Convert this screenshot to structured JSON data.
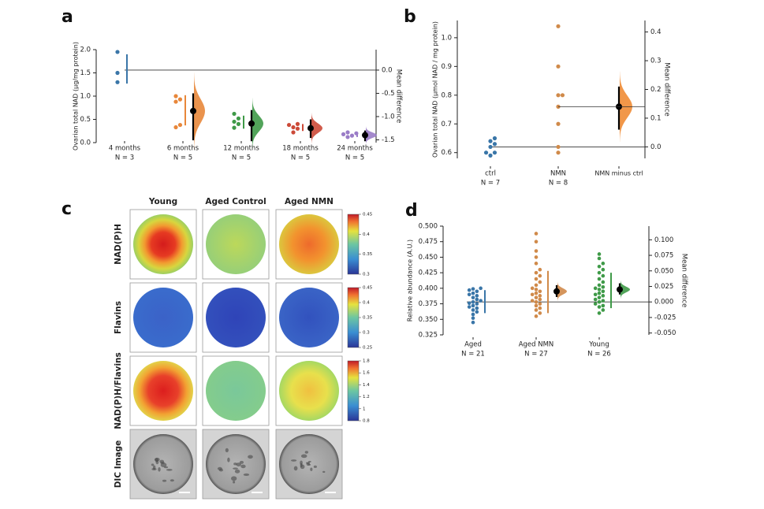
{
  "panel_labels": [
    "a",
    "b",
    "c",
    "d"
  ],
  "chart_data": [
    {
      "type": "estimation",
      "ylabel": "Ovarian total NAD (μg/mg protein)",
      "y2label": "Mean difference",
      "ylim": [
        0,
        2.0
      ],
      "yticks": [
        {
          "value": 0,
          "label": "0.0"
        },
        {
          "value": 0.5,
          "label": "0.5"
        },
        {
          "value": 1,
          "label": "1.0"
        },
        {
          "value": 1.5,
          "label": "1.5"
        },
        {
          "value": 2,
          "label": "2.0"
        }
      ],
      "y2lim": [
        -1.56,
        0.44
      ],
      "y2ticks": [
        {
          "value": 0,
          "label": "0.0"
        },
        {
          "value": -0.5,
          "label": "-0.5"
        },
        {
          "value": -1,
          "label": "-1.0"
        },
        {
          "value": -1.5,
          "label": "-1.5"
        }
      ],
      "categories": [
        "4 months",
        "6 months",
        "12 months",
        "18 months",
        "24 months"
      ],
      "n_labels": [
        "N = 3",
        "N = 5",
        "N = 5",
        "N = 5",
        "N = 5"
      ],
      "colors": [
        "#3a76a8",
        "#e8873a",
        "#3f9a48",
        "#cc4a38",
        "#9a7cc7"
      ],
      "points": [
        [
          1.95,
          1.5,
          1.3
        ],
        [
          1.0,
          0.93,
          0.88,
          0.38,
          0.33
        ],
        [
          0.62,
          0.52,
          0.45,
          0.4,
          0.32
        ],
        [
          0.4,
          0.38,
          0.33,
          0.3,
          0.22
        ],
        [
          0.22,
          0.2,
          0.18,
          0.15,
          0.12
        ]
      ],
      "summary_bars": [
        [
          1.27,
          1.9
        ],
        [
          0.37,
          1.02
        ],
        [
          0.3,
          0.58
        ],
        [
          0.25,
          0.4
        ],
        [
          0.12,
          0.22
        ]
      ],
      "mean_diff": [
        null,
        -0.88,
        -1.15,
        -1.25,
        -1.4
      ],
      "ci": [
        null,
        [
          -1.51,
          -0.5
        ],
        [
          -1.53,
          -0.86
        ],
        [
          -1.46,
          -1.06
        ],
        [
          -1.53,
          -1.3
        ]
      ]
    },
    {
      "type": "estimation",
      "ylabel": "Ovarian total NAD (μmol NAD / mg protein)",
      "y2label": "Mean difference",
      "ylim": [
        0.58,
        1.06
      ],
      "yticks": [
        0.6,
        0.7,
        0.8,
        0.9,
        {
          "value": 1,
          "label": "1.0"
        }
      ],
      "y2lim": [
        -0.04,
        0.44
      ],
      "y2ticks": [
        {
          "value": 0,
          "label": "0.0"
        },
        0.1,
        0.2,
        0.3,
        0.4
      ],
      "categories": [
        "ctrl",
        "NMN"
      ],
      "n_labels": [
        "N = 7",
        "N = 8"
      ],
      "colors": [
        "#3a76a8",
        "#d08a4a"
      ],
      "points": [
        [
          0.65,
          0.64,
          0.63,
          0.62,
          0.6,
          0.6,
          0.59
        ],
        [
          1.04,
          0.9,
          0.8,
          0.8,
          0.76,
          0.7,
          0.62,
          0.6
        ]
      ],
      "diff_label": "NMN minus ctrl",
      "diff_color": "#f08c35",
      "mean_diff": [
        null,
        0.14
      ],
      "ci": [
        null,
        [
          0.06,
          0.21
        ]
      ]
    },
    {
      "type": "estimation",
      "ylabel": "Relative abundance (A.U.)",
      "y2label": "Mean difference",
      "ylim": [
        0.325,
        0.5
      ],
      "yticks": [
        0.325,
        {
          "value": 0.35,
          "label": "0.350"
        },
        0.375,
        {
          "value": 0.4,
          "label": "0.400"
        },
        0.425,
        {
          "value": 0.45,
          "label": "0.450"
        },
        0.475,
        {
          "value": 0.5,
          "label": "0.500"
        }
      ],
      "y2lim": [
        -0.053,
        0.122
      ],
      "y2ticks": [
        {
          "value": -0.05,
          "label": "-0.050"
        },
        -0.025,
        {
          "value": 0,
          "label": "0.000"
        },
        0.025,
        {
          "value": 0.05,
          "label": "0.050"
        },
        0.075,
        {
          "value": 0.1,
          "label": "0.100"
        }
      ],
      "categories": [
        "Aged",
        "Aged NMN",
        "Young"
      ],
      "n_labels": [
        "N = 21",
        "N = 27",
        "N = 26"
      ],
      "colors": [
        "#3a76a8",
        "#d08a4a",
        "#3f9a48"
      ],
      "points": [
        [
          0.345,
          0.352,
          0.358,
          0.362,
          0.365,
          0.368,
          0.37,
          0.372,
          0.375,
          0.376,
          0.378,
          0.38,
          0.382,
          0.385,
          0.388,
          0.39,
          0.392,
          0.395,
          0.397,
          0.399,
          0.4
        ],
        [
          0.355,
          0.36,
          0.365,
          0.368,
          0.372,
          0.375,
          0.378,
          0.38,
          0.382,
          0.385,
          0.388,
          0.39,
          0.392,
          0.395,
          0.398,
          0.4,
          0.405,
          0.41,
          0.415,
          0.42,
          0.425,
          0.43,
          0.44,
          0.45,
          0.46,
          0.475,
          0.488
        ],
        [
          0.36,
          0.365,
          0.37,
          0.372,
          0.375,
          0.378,
          0.38,
          0.382,
          0.385,
          0.388,
          0.39,
          0.392,
          0.395,
          0.398,
          0.4,
          0.402,
          0.405,
          0.41,
          0.415,
          0.42,
          0.425,
          0.43,
          0.435,
          0.44,
          0.448,
          0.455
        ]
      ],
      "summary_bars": [
        [
          0.36,
          0.397
        ],
        [
          0.36,
          0.428
        ],
        [
          0.368,
          0.425
        ]
      ],
      "mean_diff": [
        null,
        0.017,
        0.02
      ],
      "ci": [
        null,
        [
          0.008,
          0.027
        ],
        [
          0.012,
          0.03
        ]
      ]
    }
  ],
  "image_panel": {
    "columns": [
      "Young",
      "Aged Control",
      "Aged NMN"
    ],
    "rows": [
      "NAD(P)H",
      "Flavins",
      "NAD(P)H/Flavins",
      "DIC Image"
    ],
    "colorbars": [
      {
        "lim": [
          0.3,
          0.45
        ],
        "ticks": [
          0.3,
          0.35,
          0.4,
          0.45
        ]
      },
      {
        "lim": [
          0.25,
          0.45
        ],
        "ticks": [
          0.25,
          0.3,
          0.35,
          0.4,
          0.45
        ]
      },
      {
        "lim": [
          0.8,
          1.8
        ],
        "ticks": [
          0.8,
          1,
          1.2,
          1.4,
          1.6,
          1.8
        ]
      }
    ]
  }
}
